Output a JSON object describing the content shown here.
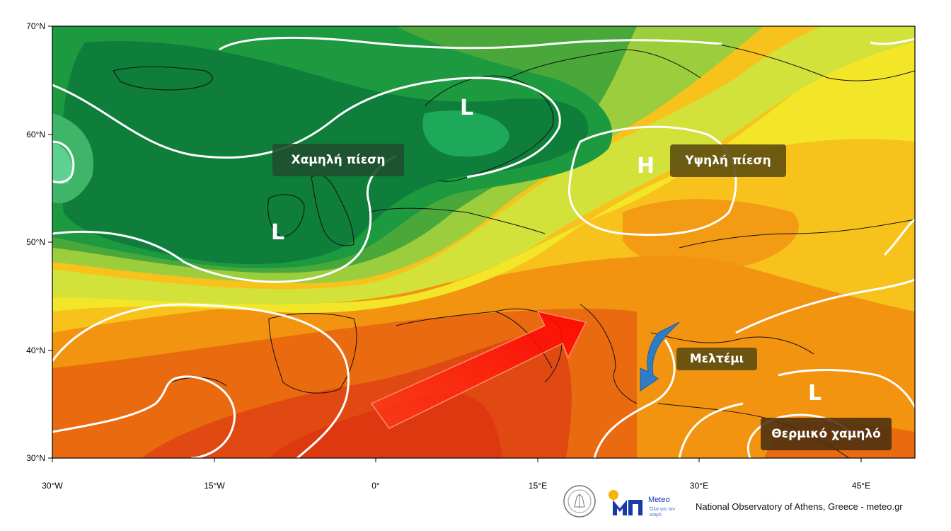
{
  "map": {
    "lat_ticks": [
      "70°N",
      "60°N",
      "50°N",
      "40°N",
      "30°N"
    ],
    "lon_ticks": [
      "30°W",
      "15°W",
      "0°",
      "15°E",
      "30°E",
      "45°E"
    ],
    "extent": {
      "lon": [
        -30,
        50
      ],
      "lat": [
        30,
        70
      ]
    },
    "projection": "equirectangular"
  },
  "labels": {
    "low_pressure": "Χαμηλή πίεση",
    "high_pressure": "Υψηλή πίεση",
    "meltemi": "Μελτέμι",
    "thermal_low": "Θερμικό χαμηλό"
  },
  "pressure_markers": {
    "low_1": "L",
    "low_2": "L",
    "high_1": "H",
    "low_3": "L"
  },
  "arrows": {
    "warm_advection": {
      "color": "#ff1a1a"
    },
    "meltemi_wind": {
      "color": "#2f7dc9"
    }
  },
  "footer": {
    "credit": "National Observatory of Athens, Greece - meteo.gr",
    "logo_name": "Meteo",
    "logo_tagline": "Όλα για τον καιρό",
    "seal_text": "ΕΘΝΙΚΟ ΑΣΤΕΡΟΣΚΟΠΕΙΟ ΑΘΗΝΩΝ"
  },
  "colors": {
    "deep_green": "#0e7e3a",
    "mid_green": "#4aa83a",
    "light_green": "#9ccd3c",
    "yellow_green": "#d2e23a",
    "yellow": "#f3e628",
    "gold": "#f8c21c",
    "orange": "#f29410",
    "dark_orange": "#ea6a10",
    "red_orange": "#e04a12",
    "label_green": "#1f4f2e",
    "label_olive": "#5a4a10",
    "label_brown": "#4a3010"
  }
}
